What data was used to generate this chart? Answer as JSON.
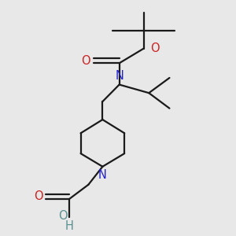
{
  "bg_color": "#e8e8e8",
  "bond_color": "#1a1a1a",
  "N_color": "#2222cc",
  "O_color": "#cc2222",
  "OH_color": "#5a9090",
  "line_width": 1.6,
  "font_size": 10.5,
  "xlim": [
    0.05,
    0.95
  ],
  "ylim": [
    0.0,
    1.0
  ]
}
